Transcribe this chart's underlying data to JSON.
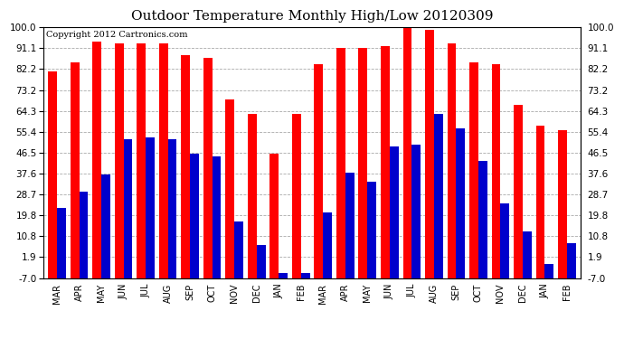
{
  "title": "Outdoor Temperature Monthly High/Low 20120309",
  "copyright": "Copyright 2012 Cartronics.com",
  "months": [
    "MAR",
    "APR",
    "MAY",
    "JUN",
    "JUL",
    "AUG",
    "SEP",
    "OCT",
    "NOV",
    "DEC",
    "JAN",
    "FEB",
    "MAR",
    "APR",
    "MAY",
    "JUN",
    "JUL",
    "AUG",
    "SEP",
    "OCT",
    "NOV",
    "DEC",
    "JAN",
    "FEB"
  ],
  "highs": [
    81,
    85,
    94,
    93,
    93,
    93,
    88,
    87,
    69,
    63,
    46,
    63,
    84,
    91,
    91,
    92,
    101,
    99,
    93,
    85,
    84,
    67,
    58,
    56
  ],
  "lows": [
    23,
    30,
    37,
    52,
    53,
    52,
    46,
    45,
    17,
    7,
    -5,
    -5,
    21,
    38,
    34,
    49,
    50,
    63,
    57,
    43,
    25,
    13,
    -1,
    8
  ],
  "bar_width": 0.4,
  "high_color": "#ff0000",
  "low_color": "#0000cc",
  "bg_color": "#ffffff",
  "yticks": [
    100.0,
    91.1,
    82.2,
    73.2,
    64.3,
    55.4,
    46.5,
    37.6,
    28.7,
    19.8,
    10.8,
    1.9,
    -7.0
  ],
  "ymin": -7.0,
  "ymax": 100.0,
  "grid_color": "#aaaaaa",
  "title_fontsize": 11,
  "copyright_fontsize": 7,
  "tick_fontsize": 7.5,
  "xlabel_fontsize": 7
}
